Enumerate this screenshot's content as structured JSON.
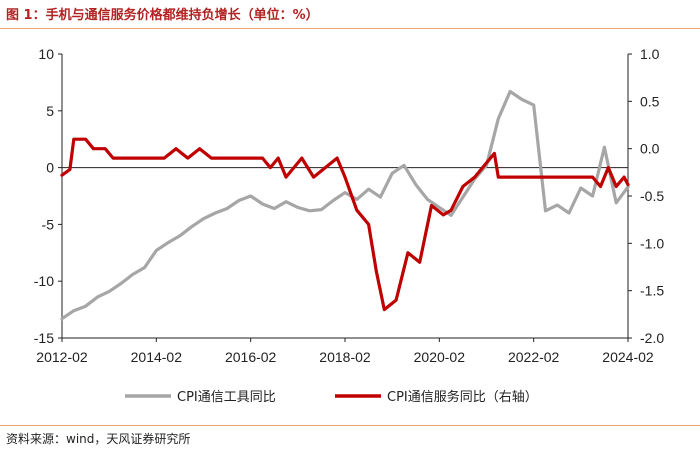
{
  "title": "图 1：手机与通信服务价格都维持负增长（单位：%）",
  "source": "资料来源：wind，天风证券研究所",
  "chart_data": {
    "type": "line",
    "title": "图 1：手机与通信服务价格都维持负增长（单位：%）",
    "unit": "%",
    "x_range": [
      "2012-02",
      "2024-02"
    ],
    "x_ticks": [
      "2012-02",
      "2014-02",
      "2016-02",
      "2018-02",
      "2020-02",
      "2022-02",
      "2024-02"
    ],
    "y_left": {
      "range": [
        -15,
        10
      ],
      "ticks": [
        "10",
        "5",
        "0",
        "-5",
        "-10",
        "-15"
      ],
      "values": [
        10,
        5,
        0,
        -5,
        -10,
        -15
      ]
    },
    "y_right": {
      "range": [
        -2.0,
        1.0
      ],
      "ticks": [
        "1.0",
        "0.5",
        "0.0",
        "-0.5",
        "-1.0",
        "-1.5",
        "-2.0"
      ],
      "values": [
        1.0,
        0.5,
        0.0,
        -0.5,
        -1.0,
        -1.5,
        -2.0
      ]
    },
    "grid": false,
    "legend": {
      "placement": "bottom"
    },
    "series": [
      {
        "name": "CPI通信工具同比",
        "axis": "left",
        "color": "#a6a6a6",
        "points": [
          [
            "2012-02",
            -13.3
          ],
          [
            "2012-05",
            -12.6
          ],
          [
            "2012-08",
            -12.2
          ],
          [
            "2012-11",
            -11.4
          ],
          [
            "2013-02",
            -10.9
          ],
          [
            "2013-05",
            -10.2
          ],
          [
            "2013-08",
            -9.4
          ],
          [
            "2013-11",
            -8.8
          ],
          [
            "2014-02",
            -7.3
          ],
          [
            "2014-05",
            -6.6
          ],
          [
            "2014-08",
            -6.0
          ],
          [
            "2014-11",
            -5.2
          ],
          [
            "2015-02",
            -4.5
          ],
          [
            "2015-05",
            -4.0
          ],
          [
            "2015-08",
            -3.6
          ],
          [
            "2015-11",
            -2.9
          ],
          [
            "2016-02",
            -2.5
          ],
          [
            "2016-05",
            -3.2
          ],
          [
            "2016-08",
            -3.6
          ],
          [
            "2016-11",
            -3.0
          ],
          [
            "2017-02",
            -3.5
          ],
          [
            "2017-05",
            -3.8
          ],
          [
            "2017-08",
            -3.7
          ],
          [
            "2017-11",
            -2.9
          ],
          [
            "2018-02",
            -2.2
          ],
          [
            "2018-05",
            -2.8
          ],
          [
            "2018-08",
            -1.9
          ],
          [
            "2018-11",
            -2.6
          ],
          [
            "2019-02",
            -0.5
          ],
          [
            "2019-05",
            0.2
          ],
          [
            "2019-08",
            -1.5
          ],
          [
            "2019-11",
            -2.8
          ],
          [
            "2020-02",
            -3.5
          ],
          [
            "2020-05",
            -4.2
          ],
          [
            "2020-08",
            -2.6
          ],
          [
            "2020-11",
            -1.0
          ],
          [
            "2021-02",
            0.2
          ],
          [
            "2021-05",
            4.3
          ],
          [
            "2021-08",
            6.7
          ],
          [
            "2021-11",
            6.0
          ],
          [
            "2022-02",
            5.5
          ],
          [
            "2022-05",
            -3.8
          ],
          [
            "2022-08",
            -3.3
          ],
          [
            "2022-11",
            -4.0
          ],
          [
            "2023-02",
            -1.8
          ],
          [
            "2023-05",
            -2.5
          ],
          [
            "2023-08",
            1.8
          ],
          [
            "2023-11",
            -3.1
          ],
          [
            "2024-02",
            -1.7
          ]
        ]
      },
      {
        "name": "CPI通信服务同比（右轴）",
        "axis": "right",
        "color": "#c00000",
        "points": [
          [
            "2012-02",
            -0.28
          ],
          [
            "2012-04",
            -0.22
          ],
          [
            "2012-05",
            0.1
          ],
          [
            "2012-08",
            0.1
          ],
          [
            "2012-10",
            0.0
          ],
          [
            "2013-01",
            0.0
          ],
          [
            "2013-03",
            -0.1
          ],
          [
            "2013-06",
            -0.1
          ],
          [
            "2013-11",
            -0.1
          ],
          [
            "2014-04",
            -0.1
          ],
          [
            "2014-07",
            0.0
          ],
          [
            "2014-10",
            -0.1
          ],
          [
            "2015-01",
            0.0
          ],
          [
            "2015-04",
            -0.1
          ],
          [
            "2015-07",
            -0.1
          ],
          [
            "2016-01",
            -0.1
          ],
          [
            "2016-05",
            -0.1
          ],
          [
            "2016-07",
            -0.2
          ],
          [
            "2016-09",
            -0.1
          ],
          [
            "2016-11",
            -0.3
          ],
          [
            "2017-03",
            -0.1
          ],
          [
            "2017-06",
            -0.3
          ],
          [
            "2017-09",
            -0.2
          ],
          [
            "2017-12",
            -0.1
          ],
          [
            "2018-02",
            -0.3
          ],
          [
            "2018-05",
            -0.65
          ],
          [
            "2018-08",
            -0.8
          ],
          [
            "2018-10",
            -1.3
          ],
          [
            "2018-12",
            -1.7
          ],
          [
            "2019-03",
            -1.6
          ],
          [
            "2019-06",
            -1.1
          ],
          [
            "2019-09",
            -1.2
          ],
          [
            "2019-12",
            -0.6
          ],
          [
            "2020-03",
            -0.7
          ],
          [
            "2020-05",
            -0.65
          ],
          [
            "2020-08",
            -0.4
          ],
          [
            "2020-11",
            -0.3
          ],
          [
            "2021-02",
            -0.15
          ],
          [
            "2021-04",
            -0.05
          ],
          [
            "2021-05",
            -0.3
          ],
          [
            "2021-09",
            -0.3
          ],
          [
            "2022-02",
            -0.3
          ],
          [
            "2022-08",
            -0.3
          ],
          [
            "2023-02",
            -0.3
          ],
          [
            "2023-05",
            -0.3
          ],
          [
            "2023-07",
            -0.4
          ],
          [
            "2023-09",
            -0.2
          ],
          [
            "2023-11",
            -0.4
          ],
          [
            "2024-01",
            -0.3
          ],
          [
            "2024-02",
            -0.38
          ]
        ]
      }
    ]
  }
}
